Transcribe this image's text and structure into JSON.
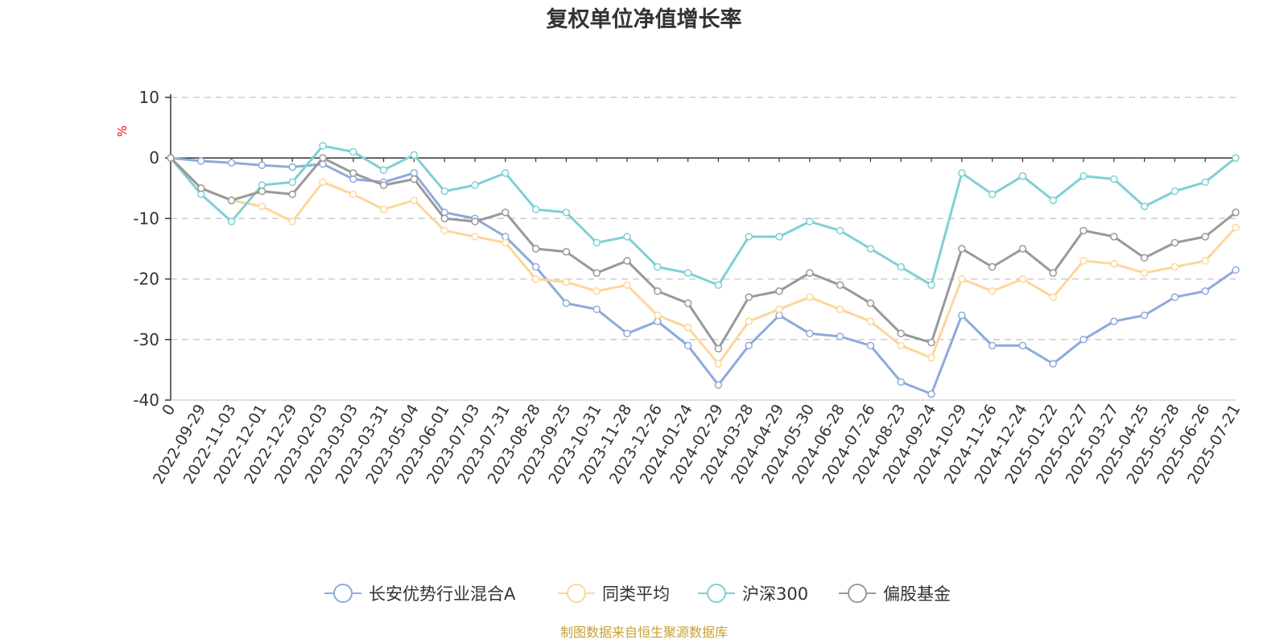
{
  "chart_data": {
    "type": "line",
    "title": "复权单位净值增长率",
    "ylabel": "%",
    "ylim": [
      -40,
      10
    ],
    "yticks": [
      10,
      0,
      -10,
      -20,
      -30,
      -40
    ],
    "grid": true,
    "legend_position": "bottom",
    "x_labels": [
      "0",
      "2022-09-29",
      "2022-11-03",
      "2022-12-01",
      "2022-12-29",
      "2023-02-03",
      "2023-03-03",
      "2023-03-31",
      "2023-05-04",
      "2023-06-01",
      "2023-07-03",
      "2023-07-31",
      "2023-08-28",
      "2023-09-25",
      "2023-10-31",
      "2023-11-28",
      "2023-12-26",
      "2024-01-24",
      "2024-02-29",
      "2024-03-28",
      "2024-04-29",
      "2024-05-30",
      "2024-06-28",
      "2024-07-26",
      "2024-08-23",
      "2024-09-24",
      "2024-10-29",
      "2024-11-26",
      "2024-12-24",
      "2025-01-22",
      "2025-02-27",
      "2025-03-27",
      "2025-04-25",
      "2025-05-28",
      "2025-06-26",
      "2025-07-21"
    ],
    "series": [
      {
        "name": "长安优势行业混合A",
        "color": "#8eaadb",
        "values": [
          0,
          -0.5,
          -0.8,
          -1.2,
          -1.5,
          -1.0,
          -3.5,
          -4.0,
          -2.5,
          -9.0,
          -10.0,
          -13.0,
          -18.0,
          -24.0,
          -25.0,
          -29.0,
          -27.0,
          -31.0,
          -37.5,
          -31.0,
          -26.0,
          -29.0,
          -29.5,
          -31.0,
          -37.0,
          -39.0,
          -26.0,
          -31.0,
          -31.0,
          -34.0,
          -30.0,
          -27.0,
          -26.0,
          -23.0,
          -22.0,
          -18.5
        ]
      },
      {
        "name": "同类平均",
        "color": "#fcd799",
        "values": [
          0,
          -5.0,
          -7.0,
          -8.0,
          -10.5,
          -4.0,
          -6.0,
          -8.5,
          -7.0,
          -12.0,
          -13.0,
          -14.0,
          -20.0,
          -20.5,
          -22.0,
          -21.0,
          -26.0,
          -28.0,
          -34.0,
          -27.0,
          -25.0,
          -23.0,
          -25.0,
          -27.0,
          -31.0,
          -33.0,
          -20.0,
          -22.0,
          -20.0,
          -23.0,
          -17.0,
          -17.5,
          -19.0,
          -18.0,
          -17.0,
          -11.5
        ]
      },
      {
        "name": "沪深300",
        "color": "#7fd0d3",
        "values": [
          0,
          -6.0,
          -10.5,
          -4.5,
          -4.0,
          2.0,
          1.0,
          -2.0,
          0.5,
          -5.5,
          -4.5,
          -2.5,
          -8.5,
          -9.0,
          -14.0,
          -13.0,
          -18.0,
          -19.0,
          -21.0,
          -13.0,
          -13.0,
          -10.5,
          -12.0,
          -15.0,
          -18.0,
          -21.0,
          -2.5,
          -6.0,
          -3.0,
          -7.0,
          -3.0,
          -3.5,
          -8.0,
          -5.5,
          -4.0,
          0
        ]
      },
      {
        "name": "偏股基金",
        "color": "#999999",
        "values": [
          0,
          -5.0,
          -7.0,
          -5.5,
          -6.0,
          0,
          -2.5,
          -4.5,
          -3.5,
          -10.0,
          -10.5,
          -9.0,
          -15.0,
          -15.5,
          -19.0,
          -17.0,
          -22.0,
          -24.0,
          -31.5,
          -23.0,
          -22.0,
          -19.0,
          -21.0,
          -24.0,
          -29.0,
          -30.5,
          -15.0,
          -18.0,
          -15.0,
          -19.0,
          -12.0,
          -13.0,
          -16.5,
          -14.0,
          -13.0,
          -9.0
        ]
      }
    ],
    "source": "制图数据来自恒生聚源数据库"
  }
}
